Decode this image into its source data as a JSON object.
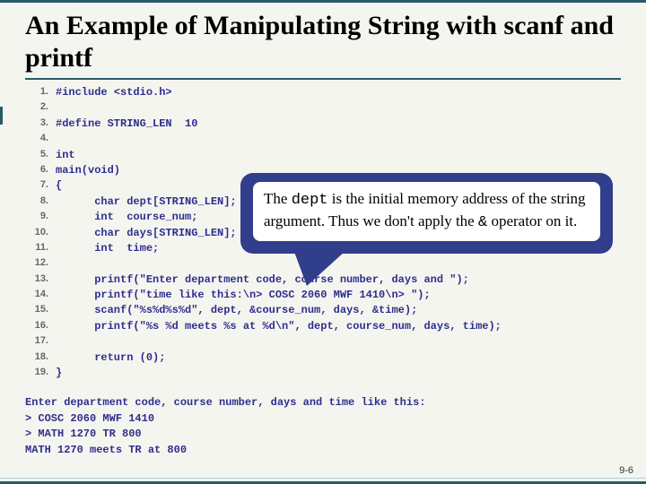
{
  "title": "An Example of Manipulating String with scanf and printf",
  "code": {
    "line_numbers": [
      "1.",
      "2.",
      "3.",
      "4.",
      "5.",
      "6.",
      "7.",
      "8.",
      "9.",
      "10.",
      "11.",
      "12.",
      "13.",
      "14.",
      "15.",
      "16.",
      "17.",
      "18.",
      "19."
    ],
    "lines": [
      "#include <stdio.h>",
      "",
      "#define STRING_LEN  10",
      "",
      "int",
      "main(void)",
      "{",
      "      char dept[STRING_LEN];",
      "      int  course_num;",
      "      char days[STRING_LEN];",
      "      int  time;",
      "",
      "      printf(\"Enter department code, course number, days and \");",
      "      printf(\"time like this:\\n> COSC 2060 MWF 1410\\n> \");",
      "      scanf(\"%s%d%s%d\", dept, &course_num, days, &time);",
      "      printf(\"%s %d meets %s at %d\\n\", dept, course_num, days, time);",
      "",
      "      return (0);",
      "}"
    ]
  },
  "output": [
    "Enter department code, course number, days and time like this:",
    "> COSC 2060 MWF 1410",
    "> MATH 1270 TR 800",
    "MATH 1270 meets TR at 800"
  ],
  "callout": {
    "pre": "The ",
    "mono1": "dept",
    "mid": " is the initial memory address of the string argument. Thus we don't apply the ",
    "mono2": "&",
    "post": " operator on it."
  },
  "page_number": "9-6",
  "colors": {
    "border": "#2a5a6a",
    "code_text": "#2e2e8e",
    "callout_bg": "#313e8b",
    "callout_inner_bg": "#ffffff"
  }
}
